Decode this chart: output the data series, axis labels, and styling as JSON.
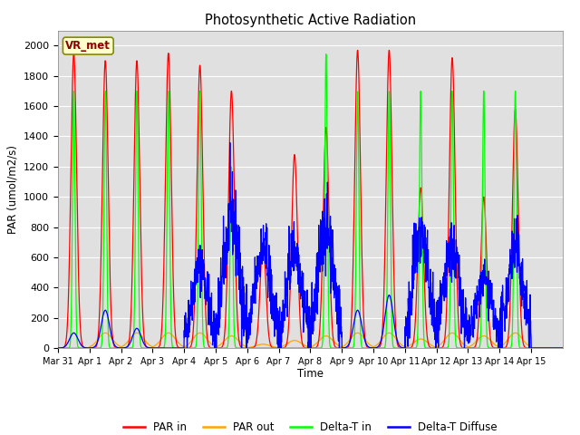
{
  "title": "Photosynthetic Active Radiation",
  "ylabel": "PAR (umol/m2/s)",
  "xlabel": "Time",
  "annotation": "VR_met",
  "ylim": [
    0,
    2100
  ],
  "background_color": "#e0e0e0",
  "legend_labels": [
    "PAR in",
    "PAR out",
    "Delta-T in",
    "Delta-T Diffuse"
  ],
  "legend_colors": [
    "red",
    "orange",
    "lime",
    "blue"
  ],
  "tick_labels": [
    "Mar 31",
    "Apr 1",
    "Apr 2",
    "Apr 3",
    "Apr 4",
    "Apr 5",
    "Apr 6",
    "Apr 7",
    "Apr 8",
    "Apr 9",
    "Apr 10",
    "Apr 11",
    "Apr 12",
    "Apr 13",
    "Apr 14",
    "Apr 15"
  ],
  "n_days": 16,
  "day_peaks_par_in": [
    1950,
    1900,
    1900,
    1950,
    1870,
    1700,
    700,
    1280,
    1460,
    1970,
    1970,
    1060,
    1920,
    1000,
    1580,
    0
  ],
  "day_peaks_par_out": [
    0,
    100,
    100,
    100,
    100,
    80,
    25,
    50,
    80,
    100,
    100,
    60,
    100,
    80,
    100,
    0
  ],
  "day_peaks_delta_in": [
    1700,
    1700,
    1700,
    1700,
    1700,
    1200,
    0,
    0,
    1950,
    1700,
    1700,
    1700,
    1700,
    1700,
    1700,
    0
  ],
  "day_peaks_diffuse": [
    100,
    250,
    130,
    0,
    550,
    870,
    660,
    650,
    800,
    250,
    350,
    750,
    650,
    450,
    650,
    0
  ],
  "yticks": [
    0,
    200,
    400,
    600,
    800,
    1000,
    1200,
    1400,
    1600,
    1800,
    2000
  ]
}
